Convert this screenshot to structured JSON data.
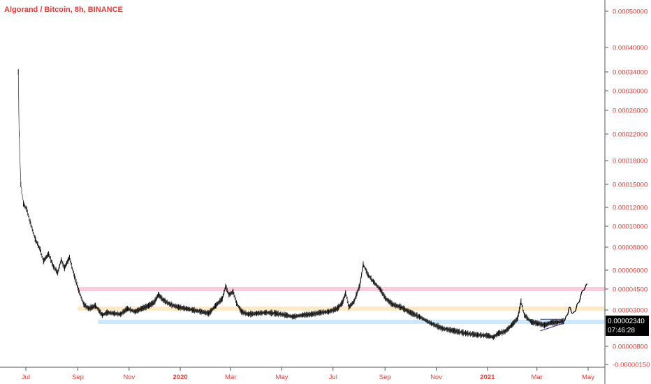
{
  "title": "Algorand / Bitcoin, 8h, BINANCE",
  "price_badge": {
    "price": "0.00002340",
    "countdown": "07:46:28"
  },
  "chart_data": {
    "type": "line",
    "title": "Algorand / Bitcoin, 8h, BINANCE",
    "xlabel": "",
    "ylabel": "",
    "y_scale": "log",
    "x_ticks": [
      {
        "label": "Jul",
        "date": "2019-07-01"
      },
      {
        "label": "Sep",
        "date": "2019-09-01"
      },
      {
        "label": "Nov",
        "date": "2019-11-01"
      },
      {
        "label": "2020",
        "date": "2020-01-01",
        "bold": true
      },
      {
        "label": "Mar",
        "date": "2020-03-01"
      },
      {
        "label": "May",
        "date": "2020-05-01"
      },
      {
        "label": "Jul",
        "date": "2020-07-01"
      },
      {
        "label": "Sep",
        "date": "2020-09-01"
      },
      {
        "label": "Nov",
        "date": "2020-11-01"
      },
      {
        "label": "2021",
        "date": "2021-01-01",
        "bold": true
      },
      {
        "label": "Mar",
        "date": "2021-03-01"
      },
      {
        "label": "May",
        "date": "2021-05-01"
      }
    ],
    "y_ticks": [
      "0.00050000",
      "0.00040000",
      "0.00034000",
      "0.00030000",
      "0.00026000",
      "0.00022000",
      "0.00018000",
      "0.00015000",
      "0.00012000",
      "0.00010000",
      "0.00008000",
      "0.00006000",
      "0.00004500",
      "0.00003000",
      "0.00002340",
      "0.00000800",
      "-0.00000150"
    ],
    "series": [
      {
        "color": "#000000",
        "points": [
          [
            "2019-06-22",
            0.00034
          ],
          [
            "2019-06-23",
            0.00022
          ],
          [
            "2019-06-25",
            0.00015
          ],
          [
            "2019-06-28",
            0.000125
          ],
          [
            "2019-07-02",
            0.000118
          ],
          [
            "2019-07-06",
            0.000105
          ],
          [
            "2019-07-12",
            8.8e-05
          ],
          [
            "2019-07-18",
            7.8e-05
          ],
          [
            "2019-07-22",
            6.8e-05
          ],
          [
            "2019-07-28",
            7.4e-05
          ],
          [
            "2019-08-03",
            6.3e-05
          ],
          [
            "2019-08-08",
            5.8e-05
          ],
          [
            "2019-08-12",
            6.9e-05
          ],
          [
            "2019-08-16",
            6.2e-05
          ],
          [
            "2019-08-22",
            7.1e-05
          ],
          [
            "2019-08-28",
            5.5e-05
          ],
          [
            "2019-09-02",
            4.4e-05
          ],
          [
            "2019-09-08",
            3.4e-05
          ],
          [
            "2019-09-14",
            3.1e-05
          ],
          [
            "2019-09-22",
            3.3e-05
          ],
          [
            "2019-09-30",
            2.7e-05
          ],
          [
            "2019-10-06",
            2.85e-05
          ],
          [
            "2019-10-14",
            2.8e-05
          ],
          [
            "2019-10-22",
            2.75e-05
          ],
          [
            "2019-10-30",
            3.1e-05
          ],
          [
            "2019-11-08",
            2.9e-05
          ],
          [
            "2019-11-16",
            3.1e-05
          ],
          [
            "2019-11-24",
            3.3e-05
          ],
          [
            "2019-12-01",
            3.55e-05
          ],
          [
            "2019-12-06",
            4.1e-05
          ],
          [
            "2019-12-12",
            3.7e-05
          ],
          [
            "2019-12-20",
            3.4e-05
          ],
          [
            "2019-12-30",
            3.2e-05
          ],
          [
            "2020-01-08",
            3.1e-05
          ],
          [
            "2020-01-16",
            3e-05
          ],
          [
            "2020-01-26",
            2.9e-05
          ],
          [
            "2020-02-04",
            2.8e-05
          ],
          [
            "2020-02-12",
            3.3e-05
          ],
          [
            "2020-02-20",
            3.8e-05
          ],
          [
            "2020-02-24",
            4.7e-05
          ],
          [
            "2020-02-28",
            4.1e-05
          ],
          [
            "2020-03-04",
            4.3e-05
          ],
          [
            "2020-03-08",
            3.5e-05
          ],
          [
            "2020-03-14",
            2.9e-05
          ],
          [
            "2020-03-22",
            2.75e-05
          ],
          [
            "2020-04-01",
            2.8e-05
          ],
          [
            "2020-04-12",
            2.85e-05
          ],
          [
            "2020-04-24",
            2.8e-05
          ],
          [
            "2020-05-06",
            2.7e-05
          ],
          [
            "2020-05-14",
            2.6e-05
          ],
          [
            "2020-05-26",
            2.7e-05
          ],
          [
            "2020-06-06",
            2.75e-05
          ],
          [
            "2020-06-16",
            2.85e-05
          ],
          [
            "2020-06-26",
            2.9e-05
          ],
          [
            "2020-07-06",
            3.1e-05
          ],
          [
            "2020-07-12",
            3.5e-05
          ],
          [
            "2020-07-16",
            4.2e-05
          ],
          [
            "2020-07-20",
            3.2e-05
          ],
          [
            "2020-07-26",
            3.6e-05
          ],
          [
            "2020-08-02",
            4.8e-05
          ],
          [
            "2020-08-06",
            6.5e-05
          ],
          [
            "2020-08-12",
            5.6e-05
          ],
          [
            "2020-08-18",
            5.1e-05
          ],
          [
            "2020-08-26",
            4.5e-05
          ],
          [
            "2020-09-02",
            3.8e-05
          ],
          [
            "2020-09-10",
            3.4e-05
          ],
          [
            "2020-09-20",
            3.2e-05
          ],
          [
            "2020-10-01",
            2.85e-05
          ],
          [
            "2020-10-12",
            2.6e-05
          ],
          [
            "2020-10-26",
            2.2e-05
          ],
          [
            "2020-11-08",
            1.9e-05
          ],
          [
            "2020-11-22",
            1.75e-05
          ],
          [
            "2020-12-06",
            1.6e-05
          ],
          [
            "2020-12-20",
            1.5e-05
          ],
          [
            "2021-01-02",
            1.45e-05
          ],
          [
            "2021-01-08",
            1.35e-05
          ],
          [
            "2021-01-14",
            1.6e-05
          ],
          [
            "2021-01-22",
            1.7e-05
          ],
          [
            "2021-01-30",
            2.1e-05
          ],
          [
            "2021-02-06",
            2.5e-05
          ],
          [
            "2021-02-10",
            3.6e-05
          ],
          [
            "2021-02-14",
            2.7e-05
          ],
          [
            "2021-02-22",
            2.3e-05
          ],
          [
            "2021-03-02",
            2.2e-05
          ],
          [
            "2021-03-10",
            2.1e-05
          ],
          [
            "2021-03-18",
            2.25e-05
          ],
          [
            "2021-03-26",
            2.28e-05
          ],
          [
            "2021-04-02",
            2.34e-05
          ]
        ]
      }
    ],
    "projection": {
      "color": "#000000",
      "points": [
        [
          "2021-04-02",
          2.34e-05
        ],
        [
          "2021-04-06",
          2.7e-05
        ],
        [
          "2021-04-09",
          3.2e-05
        ],
        [
          "2021-04-12",
          2.8e-05
        ],
        [
          "2021-04-15",
          2.9e-05
        ],
        [
          "2021-04-19",
          3.5e-05
        ],
        [
          "2021-04-25",
          4.4e-05
        ],
        [
          "2021-04-30",
          4.9e-05
        ]
      ]
    },
    "support_resistance_zones": [
      {
        "value": 4.5e-05,
        "color": "#f8bbd0",
        "start": "2019-09-01"
      },
      {
        "value": 3.1e-05,
        "color": "#ffe0b2",
        "start": "2019-09-01"
      },
      {
        "value": 2.3e-05,
        "color": "#bbdefb",
        "start": "2019-09-25"
      }
    ],
    "triangle_lines": {
      "color": "#5e35b1",
      "upper": [
        [
          "2021-03-05",
          2.45e-05
        ],
        [
          "2021-04-01",
          2.45e-05
        ]
      ],
      "lower": [
        [
          "2021-03-05",
          1.75e-05
        ],
        [
          "2021-04-01",
          2.2e-05
        ]
      ]
    }
  }
}
